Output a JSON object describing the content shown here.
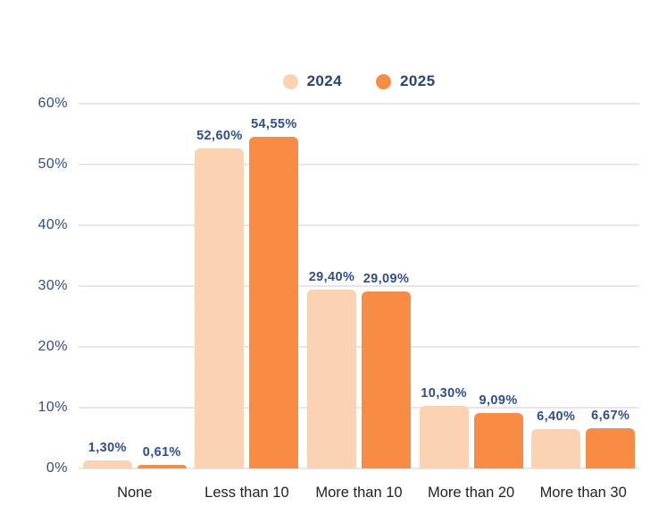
{
  "chart_data": {
    "type": "bar",
    "title": "",
    "categories": [
      "None",
      "Less than 10",
      "More than 10",
      "More than 20",
      "More than 30"
    ],
    "series": [
      {
        "name": "2024",
        "color": "#FBD2B2",
        "values": [
          1.3,
          52.6,
          29.4,
          10.3,
          6.4
        ],
        "labels": [
          "1,30%",
          "52,60%",
          "29,40%",
          "10,30%",
          "6,40%"
        ]
      },
      {
        "name": "2025",
        "color": "#F98C44",
        "values": [
          0.61,
          54.55,
          29.09,
          9.09,
          6.67
        ],
        "labels": [
          "0,61%",
          "54,55%",
          "29,09%",
          "9,09%",
          "6,67%"
        ]
      }
    ],
    "y_axis": {
      "ticks": [
        "60%",
        "50%",
        "40%",
        "30%",
        "20%",
        "10%",
        "0%"
      ],
      "tick_values": [
        60,
        50,
        40,
        30,
        20,
        10,
        0
      ],
      "min": 0,
      "max": 60,
      "grid": true
    },
    "legend": {
      "position": "top",
      "items": [
        "2024",
        "2025"
      ]
    }
  },
  "colors": {
    "background": "#FFFFFF",
    "text_navy": "#2E4E8E",
    "category_text": "#222228",
    "gridline": "#E8E6EB",
    "series_2024": "#FBD2B2",
    "series_2025": "#F98C44"
  }
}
